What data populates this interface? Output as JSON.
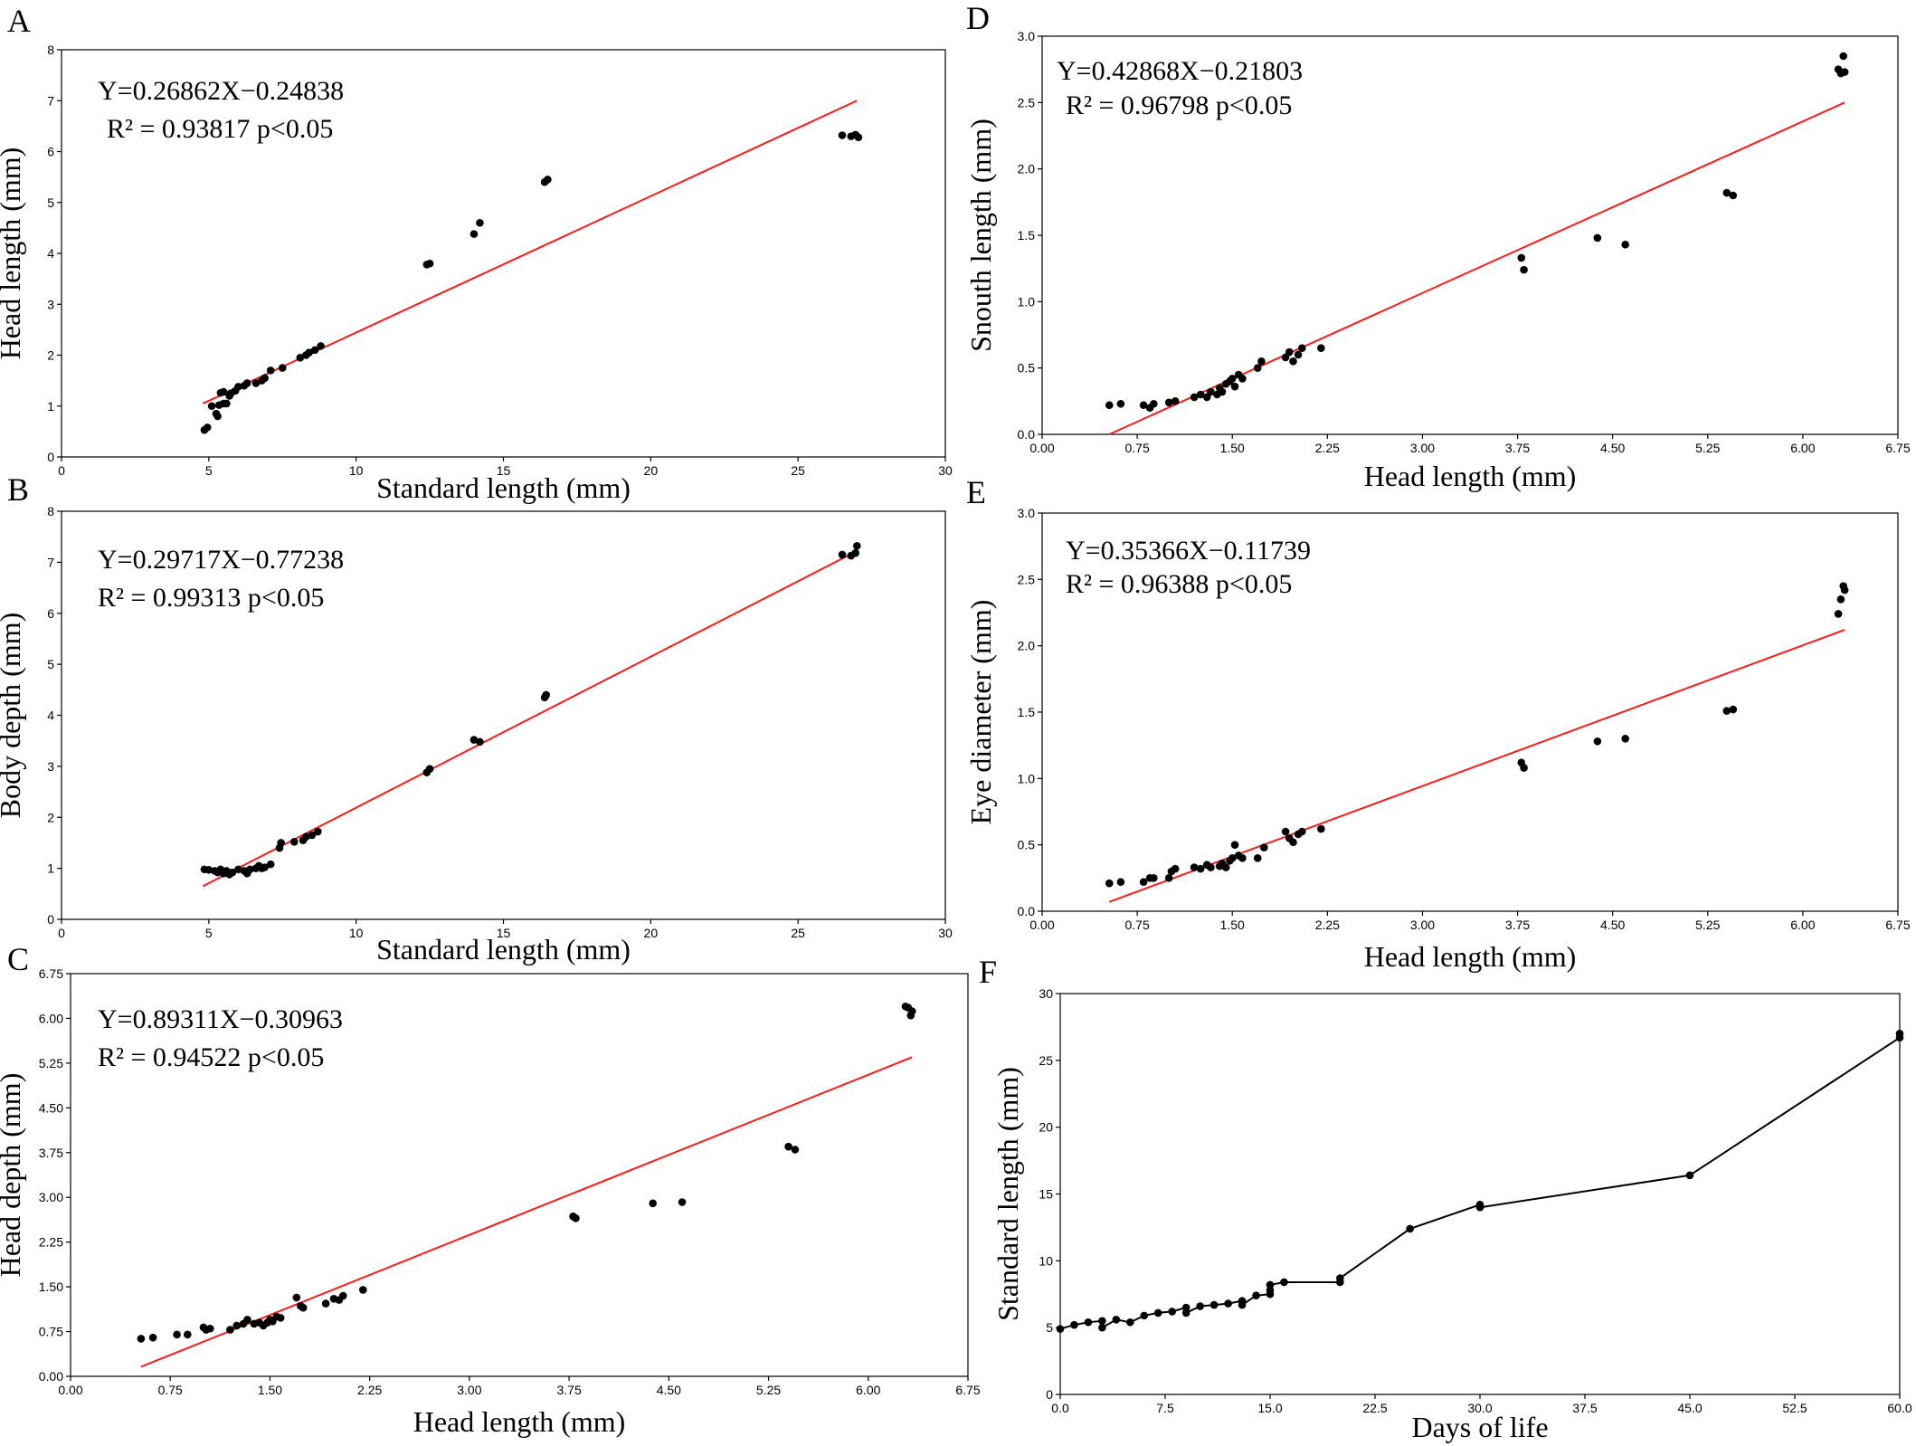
{
  "chart_data": [
    {
      "id": "A",
      "type": "scatter",
      "panel_label": "A",
      "xlabel": "Standard length (mm)",
      "ylabel": "Head length (mm)",
      "xlim": [
        0,
        30
      ],
      "ylim": [
        0,
        8
      ],
      "xticks": [
        "0",
        "5",
        "10",
        "15",
        "20",
        "25",
        "30"
      ],
      "yticks": [
        "0",
        "1",
        "2",
        "3",
        "4",
        "5",
        "6",
        "7",
        "8"
      ],
      "equation": "Y=0.26862X−0.24838",
      "r2": "R² = 0.93817  p<0.05",
      "fit": {
        "x": [
          4.8,
          27.0
        ],
        "y": [
          1.05,
          7.0
        ]
      },
      "colors": {
        "points": "#000000",
        "fit_line": "#ff1a1a"
      },
      "points": [
        [
          4.85,
          0.53
        ],
        [
          4.95,
          0.58
        ],
        [
          5.1,
          1.0
        ],
        [
          5.25,
          0.85
        ],
        [
          5.3,
          0.8
        ],
        [
          5.35,
          1.02
        ],
        [
          5.4,
          1.26
        ],
        [
          5.5,
          1.28
        ],
        [
          5.5,
          1.05
        ],
        [
          5.6,
          1.05
        ],
        [
          5.7,
          1.2
        ],
        [
          5.75,
          1.25
        ],
        [
          5.9,
          1.3
        ],
        [
          6.0,
          1.38
        ],
        [
          6.2,
          1.4
        ],
        [
          6.3,
          1.45
        ],
        [
          6.6,
          1.45
        ],
        [
          6.8,
          1.5
        ],
        [
          6.9,
          1.55
        ],
        [
          7.1,
          1.7
        ],
        [
          7.5,
          1.75
        ],
        [
          8.1,
          1.95
        ],
        [
          8.3,
          2.0
        ],
        [
          8.4,
          2.05
        ],
        [
          8.6,
          2.1
        ],
        [
          8.8,
          2.18
        ],
        [
          12.4,
          3.78
        ],
        [
          12.5,
          3.8
        ],
        [
          14.0,
          4.38
        ],
        [
          14.2,
          4.6
        ],
        [
          16.4,
          5.4
        ],
        [
          16.5,
          5.45
        ],
        [
          26.5,
          6.32
        ],
        [
          26.8,
          6.3
        ],
        [
          26.95,
          6.33
        ],
        [
          27.05,
          6.28
        ]
      ]
    },
    {
      "id": "B",
      "type": "scatter",
      "panel_label": "B",
      "xlabel": "Standard length (mm)",
      "ylabel": "Body depth (mm)",
      "xlim": [
        0,
        30
      ],
      "ylim": [
        0,
        8
      ],
      "xticks": [
        "0",
        "5",
        "10",
        "15",
        "20",
        "25",
        "30"
      ],
      "yticks": [
        "0",
        "1",
        "2",
        "3",
        "4",
        "5",
        "6",
        "7",
        "8"
      ],
      "equation": "Y=0.29717X−0.77238",
      "r2": "R² = 0.99313 p<0.05",
      "fit": {
        "x": [
          4.8,
          27.0
        ],
        "y": [
          0.65,
          7.22
        ]
      },
      "colors": {
        "points": "#000000",
        "fit_line": "#ff1a1a"
      },
      "points": [
        [
          4.85,
          0.98
        ],
        [
          5.0,
          0.97
        ],
        [
          5.2,
          0.95
        ],
        [
          5.3,
          0.92
        ],
        [
          5.4,
          0.98
        ],
        [
          5.5,
          0.9
        ],
        [
          5.6,
          0.95
        ],
        [
          5.7,
          0.88
        ],
        [
          5.8,
          0.92
        ],
        [
          6.0,
          0.98
        ],
        [
          6.2,
          0.95
        ],
        [
          6.3,
          0.9
        ],
        [
          6.4,
          0.98
        ],
        [
          6.6,
          1.0
        ],
        [
          6.7,
          1.05
        ],
        [
          6.8,
          1.0
        ],
        [
          6.9,
          1.02
        ],
        [
          7.1,
          1.08
        ],
        [
          7.4,
          1.4
        ],
        [
          7.45,
          1.5
        ],
        [
          7.9,
          1.52
        ],
        [
          8.2,
          1.55
        ],
        [
          8.3,
          1.62
        ],
        [
          8.5,
          1.65
        ],
        [
          8.7,
          1.72
        ],
        [
          12.4,
          2.88
        ],
        [
          12.5,
          2.95
        ],
        [
          14.0,
          3.52
        ],
        [
          14.2,
          3.48
        ],
        [
          16.4,
          4.35
        ],
        [
          16.45,
          4.4
        ],
        [
          26.5,
          7.15
        ],
        [
          26.8,
          7.13
        ],
        [
          26.95,
          7.18
        ],
        [
          27.0,
          7.32
        ]
      ]
    },
    {
      "id": "C",
      "type": "scatter",
      "panel_label": "C",
      "xlabel": "Head length (mm)",
      "ylabel": "Head depth (mm)",
      "xlim": [
        0,
        6.75
      ],
      "ylim": [
        0,
        6.75
      ],
      "xticks": [
        "0.00",
        "0.75",
        "1.50",
        "2.25",
        "3.00",
        "3.75",
        "4.50",
        "5.25",
        "6.00",
        "6.75"
      ],
      "yticks": [
        "0.00",
        "0.75",
        "1.50",
        "2.25",
        "3.00",
        "3.75",
        "4.50",
        "5.25",
        "6.00",
        "6.75"
      ],
      "equation": "Y=0.89311X−0.30963",
      "r2": "R² = 0.94522 p<0.05",
      "fit": {
        "x": [
          0.53,
          6.33
        ],
        "y": [
          0.16,
          5.35
        ]
      },
      "colors": {
        "points": "#000000",
        "fit_line": "#ff1a1a"
      },
      "points": [
        [
          0.53,
          0.63
        ],
        [
          0.62,
          0.65
        ],
        [
          0.8,
          0.7
        ],
        [
          0.88,
          0.7
        ],
        [
          1.0,
          0.82
        ],
        [
          1.02,
          0.78
        ],
        [
          1.05,
          0.8
        ],
        [
          1.2,
          0.78
        ],
        [
          1.25,
          0.85
        ],
        [
          1.3,
          0.88
        ],
        [
          1.33,
          0.95
        ],
        [
          1.38,
          0.88
        ],
        [
          1.42,
          0.9
        ],
        [
          1.45,
          0.85
        ],
        [
          1.48,
          0.9
        ],
        [
          1.5,
          0.95
        ],
        [
          1.52,
          0.92
        ],
        [
          1.55,
          1.0
        ],
        [
          1.58,
          0.98
        ],
        [
          1.7,
          1.32
        ],
        [
          1.73,
          1.18
        ],
        [
          1.75,
          1.15
        ],
        [
          1.92,
          1.22
        ],
        [
          1.98,
          1.3
        ],
        [
          2.02,
          1.28
        ],
        [
          2.05,
          1.35
        ],
        [
          2.2,
          1.45
        ],
        [
          3.78,
          2.68
        ],
        [
          3.8,
          2.65
        ],
        [
          4.38,
          2.9
        ],
        [
          4.6,
          2.92
        ],
        [
          5.4,
          3.85
        ],
        [
          5.45,
          3.8
        ],
        [
          6.28,
          6.2
        ],
        [
          6.3,
          6.18
        ],
        [
          6.32,
          6.05
        ],
        [
          6.33,
          6.12
        ]
      ]
    },
    {
      "id": "D",
      "type": "scatter",
      "panel_label": "D",
      "xlabel": "Head length (mm)",
      "ylabel": "Snouth length (mm)",
      "xlim": [
        0,
        6.75
      ],
      "ylim": [
        0,
        3.0
      ],
      "xticks": [
        "0.00",
        "0.75",
        "1.50",
        "2.25",
        "3.00",
        "3.75",
        "4.50",
        "5.25",
        "6.00",
        "6.75"
      ],
      "yticks": [
        "0.0",
        "0.5",
        "1.0",
        "1.5",
        "2.0",
        "2.5",
        "3.0"
      ],
      "equation": "Y=0.42868X−0.21803",
      "r2": "R² = 0.96798 p<0.05",
      "fit": {
        "x": [
          0.53,
          6.33
        ],
        "y": [
          0.0,
          2.5
        ]
      },
      "colors": {
        "points": "#000000",
        "fit_line": "#ff1a1a"
      },
      "points": [
        [
          0.53,
          0.22
        ],
        [
          0.62,
          0.23
        ],
        [
          0.8,
          0.22
        ],
        [
          0.85,
          0.2
        ],
        [
          0.88,
          0.23
        ],
        [
          1.0,
          0.24
        ],
        [
          1.05,
          0.25
        ],
        [
          1.2,
          0.28
        ],
        [
          1.25,
          0.3
        ],
        [
          1.3,
          0.28
        ],
        [
          1.33,
          0.32
        ],
        [
          1.38,
          0.3
        ],
        [
          1.4,
          0.35
        ],
        [
          1.42,
          0.32
        ],
        [
          1.45,
          0.38
        ],
        [
          1.48,
          0.4
        ],
        [
          1.5,
          0.42
        ],
        [
          1.52,
          0.36
        ],
        [
          1.55,
          0.45
        ],
        [
          1.58,
          0.42
        ],
        [
          1.7,
          0.5
        ],
        [
          1.73,
          0.55
        ],
        [
          1.92,
          0.58
        ],
        [
          1.95,
          0.62
        ],
        [
          1.98,
          0.55
        ],
        [
          2.02,
          0.6
        ],
        [
          2.05,
          0.65
        ],
        [
          2.2,
          0.65
        ],
        [
          3.78,
          1.33
        ],
        [
          3.8,
          1.24
        ],
        [
          4.38,
          1.48
        ],
        [
          4.6,
          1.43
        ],
        [
          5.4,
          1.82
        ],
        [
          5.45,
          1.8
        ],
        [
          6.28,
          2.75
        ],
        [
          6.3,
          2.72
        ],
        [
          6.32,
          2.85
        ],
        [
          6.33,
          2.73
        ]
      ]
    },
    {
      "id": "E",
      "type": "scatter",
      "panel_label": "E",
      "xlabel": "Head length (mm)",
      "ylabel": "Eye diameter (mm)",
      "xlim": [
        0,
        6.75
      ],
      "ylim": [
        0,
        3.0
      ],
      "xticks": [
        "0.00",
        "0.75",
        "1.50",
        "2.25",
        "3.00",
        "3.75",
        "4.50",
        "5.25",
        "6.00",
        "6.75"
      ],
      "yticks": [
        "0.0",
        "0.5",
        "1.0",
        "1.5",
        "2.0",
        "2.5",
        "3.0"
      ],
      "equation": "Y=0.35366X−0.11739",
      "r2": "R² = 0.96388 p<0.05",
      "fit": {
        "x": [
          0.53,
          6.33
        ],
        "y": [
          0.07,
          2.12
        ]
      },
      "colors": {
        "points": "#000000",
        "fit_line": "#ff1a1a"
      },
      "points": [
        [
          0.53,
          0.21
        ],
        [
          0.62,
          0.22
        ],
        [
          0.8,
          0.22
        ],
        [
          0.85,
          0.25
        ],
        [
          0.88,
          0.25
        ],
        [
          1.0,
          0.25
        ],
        [
          1.02,
          0.3
        ],
        [
          1.05,
          0.32
        ],
        [
          1.2,
          0.33
        ],
        [
          1.25,
          0.32
        ],
        [
          1.3,
          0.35
        ],
        [
          1.33,
          0.33
        ],
        [
          1.4,
          0.34
        ],
        [
          1.42,
          0.36
        ],
        [
          1.45,
          0.33
        ],
        [
          1.48,
          0.38
        ],
        [
          1.5,
          0.4
        ],
        [
          1.52,
          0.5
        ],
        [
          1.55,
          0.42
        ],
        [
          1.58,
          0.4
        ],
        [
          1.7,
          0.4
        ],
        [
          1.75,
          0.48
        ],
        [
          1.92,
          0.6
        ],
        [
          1.95,
          0.55
        ],
        [
          1.98,
          0.52
        ],
        [
          2.02,
          0.58
        ],
        [
          2.05,
          0.6
        ],
        [
          2.2,
          0.62
        ],
        [
          3.78,
          1.12
        ],
        [
          3.8,
          1.08
        ],
        [
          4.38,
          1.28
        ],
        [
          4.6,
          1.3
        ],
        [
          5.4,
          1.51
        ],
        [
          5.45,
          1.52
        ],
        [
          6.28,
          2.24
        ],
        [
          6.3,
          2.35
        ],
        [
          6.32,
          2.45
        ],
        [
          6.33,
          2.42
        ]
      ]
    },
    {
      "id": "F",
      "type": "line",
      "panel_label": "F",
      "xlabel": "Days of life",
      "ylabel": "Standard length (mm)",
      "xlim": [
        0,
        60
      ],
      "ylim": [
        0,
        30
      ],
      "xticks": [
        "0.0",
        "7.5",
        "15.0",
        "22.5",
        "30.0",
        "37.5",
        "45.0",
        "52.5",
        "60.0"
      ],
      "yticks": [
        "0",
        "5",
        "10",
        "15",
        "20",
        "25",
        "30"
      ],
      "colors": {
        "points": "#000000",
        "line": "#000000"
      },
      "points": [
        [
          0,
          4.9
        ],
        [
          1,
          5.2
        ],
        [
          2,
          5.4
        ],
        [
          3,
          5.5
        ],
        [
          3,
          5.0
        ],
        [
          4,
          5.6
        ],
        [
          5,
          5.4
        ],
        [
          6,
          5.9
        ],
        [
          7,
          6.1
        ],
        [
          8,
          6.2
        ],
        [
          9,
          6.5
        ],
        [
          9,
          6.1
        ],
        [
          10,
          6.6
        ],
        [
          11,
          6.7
        ],
        [
          12,
          6.8
        ],
        [
          13,
          7.0
        ],
        [
          13,
          6.7
        ],
        [
          14,
          7.4
        ],
        [
          15,
          7.5
        ],
        [
          15,
          7.8
        ],
        [
          15,
          8.2
        ],
        [
          16,
          8.4
        ],
        [
          20,
          8.4
        ],
        [
          20,
          8.7
        ],
        [
          25,
          12.4
        ],
        [
          30,
          14.2
        ],
        [
          30,
          14.0
        ],
        [
          45,
          16.4
        ],
        [
          60,
          26.7
        ],
        [
          60,
          27.0
        ]
      ]
    }
  ]
}
